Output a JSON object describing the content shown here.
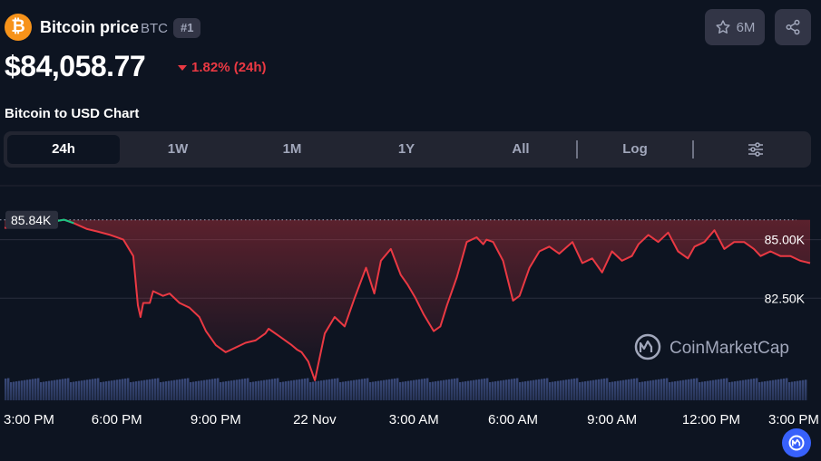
{
  "header": {
    "coin_icon": "bitcoin-logo",
    "coin_glyph": "₿",
    "name": "Bitcoin price",
    "symbol": "BTC",
    "rank": "#1",
    "watchlist_count": "6M",
    "watchlist_icon": "star-icon",
    "share_icon": "share-icon"
  },
  "price": {
    "value": "$84,058.77",
    "change": "1.82% (24h)",
    "direction": "down",
    "color_down": "#ea3943",
    "color_up": "#16c784"
  },
  "chart_title": "Bitcoin to USD Chart",
  "range_tabs": [
    "24h",
    "1W",
    "1M",
    "1Y",
    "All"
  ],
  "active_tab": "24h",
  "log_label": "Log",
  "filter_icon": "sliders-icon",
  "watermark": "CoinMarketCap",
  "chart_data": {
    "type": "line",
    "title": "",
    "x_ticks": [
      "3:00 PM",
      "6:00 PM",
      "9:00 PM",
      "22 Nov",
      "3:00 AM",
      "6:00 AM",
      "9:00 AM",
      "12:00 PM",
      "3:00 PM"
    ],
    "x_tick_hours": [
      0,
      3,
      6,
      9,
      12,
      15,
      18,
      21,
      24
    ],
    "x_range_hours": [
      -0.4,
      24
    ],
    "y_ticks": [
      "85.00K",
      "82.50K"
    ],
    "y_tick_values": [
      85000,
      82500
    ],
    "reference_label": "85.84K",
    "reference_value": 85840,
    "y_range": [
      79500,
      87300
    ],
    "volume_bars": true,
    "series": [
      {
        "values_x_hours": [
          -0.4,
          0.5,
          1.0,
          1.4,
          1.7,
          2.1,
          2.4,
          2.8,
          3.2,
          3.5,
          3.64,
          3.72,
          3.8,
          4.0,
          4.1,
          4.4,
          4.6,
          4.9,
          5.2,
          5.5,
          5.7,
          6.0,
          6.3,
          6.6,
          6.9,
          7.2,
          7.5,
          7.6,
          7.9,
          8.3,
          8.47,
          8.6,
          8.8,
          9.0,
          9.3,
          9.6,
          9.9,
          10.2,
          10.55,
          10.8,
          11.0,
          11.3,
          11.6,
          11.8,
          12.05,
          12.3,
          12.6,
          12.8,
          13.0,
          13.3,
          13.6,
          13.9,
          14.1,
          14.2,
          14.4,
          14.7,
          15.0,
          15.2,
          15.5,
          15.8,
          16.1,
          16.4,
          16.8,
          17.1,
          17.4,
          17.7,
          18.0,
          18.3,
          18.6,
          18.8,
          19.1,
          19.4,
          19.7,
          20.0,
          20.3,
          20.5,
          20.8,
          21.1,
          21.4,
          21.7,
          22.0,
          22.3,
          22.5,
          22.8,
          23.1,
          23.4,
          23.7,
          24.0
        ],
        "values_y": [
          85500,
          85600,
          85750,
          85850,
          85700,
          85450,
          85350,
          85200,
          85000,
          84300,
          82200,
          81700,
          82300,
          82300,
          82800,
          82600,
          82700,
          82300,
          82100,
          81700,
          81100,
          80500,
          80200,
          80400,
          80600,
          80700,
          81000,
          81200,
          80900,
          80500,
          80300,
          80200,
          79800,
          79000,
          81000,
          81700,
          81300,
          82500,
          83800,
          82700,
          84100,
          84600,
          83500,
          83100,
          82500,
          81800,
          81100,
          81300,
          82200,
          83400,
          84900,
          85100,
          84800,
          85000,
          84900,
          84100,
          82400,
          82600,
          83800,
          84500,
          84700,
          84400,
          84900,
          84000,
          84200,
          83600,
          84500,
          84100,
          84300,
          84800,
          85200,
          84900,
          85300,
          84500,
          84200,
          84700,
          84900,
          85400,
          84600,
          84900,
          84900,
          84600,
          84300,
          84500,
          84300,
          84300,
          84100,
          84000
        ]
      }
    ]
  }
}
